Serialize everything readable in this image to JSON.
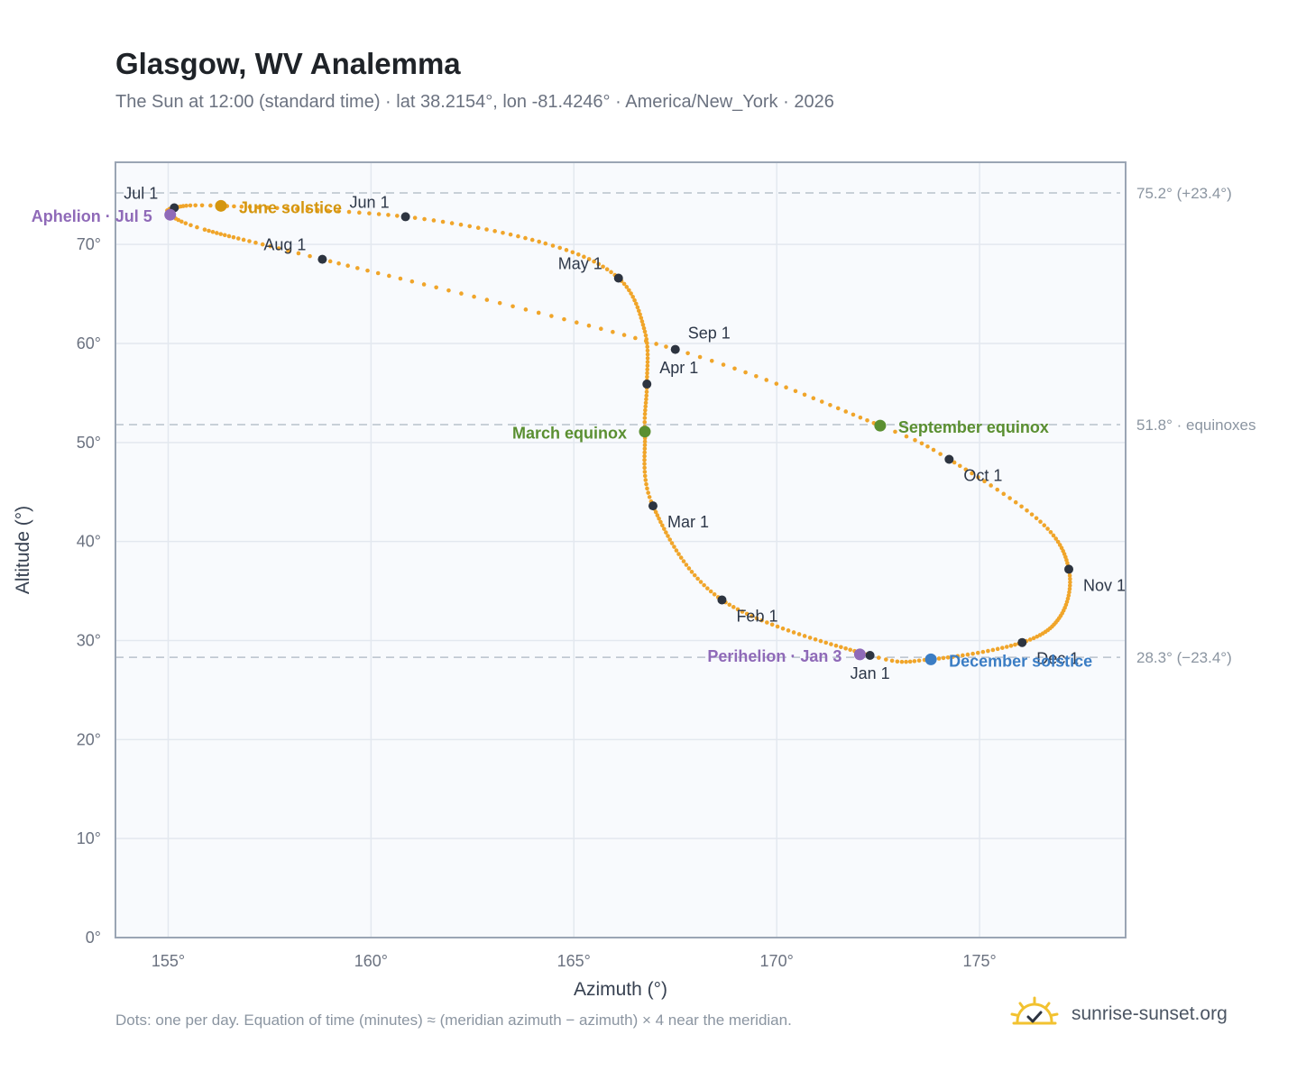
{
  "header": {
    "title": "Glasgow, WV Analemma",
    "subtitle": "The Sun at 12:00 (standard time) · lat 38.2154°, lon -81.4246° · America/New_York · 2026"
  },
  "footer": {
    "note": "Dots: one per day. Equation of time (minutes) ≈ (meridian azimuth − azimuth) × 4 near the meridian.",
    "brand": "sunrise-sunset.org"
  },
  "chart_data": {
    "type": "scatter",
    "xlabel": "Azimuth (°)",
    "ylabel": "Altitude (°)",
    "xlim": [
      153.7,
      178.6
    ],
    "ylim": [
      0,
      78.3
    ],
    "x_ticks": [
      155,
      160,
      165,
      170,
      175
    ],
    "x_tick_labels": [
      "155°",
      "160°",
      "165°",
      "170°",
      "175°"
    ],
    "y_ticks": [
      0,
      10,
      20,
      30,
      40,
      50,
      60,
      70
    ],
    "y_tick_labels": [
      "0°",
      "10°",
      "20°",
      "30°",
      "40°",
      "50°",
      "60°",
      "70°"
    ],
    "grid": true,
    "reference_lines": [
      {
        "y": 75.2,
        "label": "75.2° (+23.4°)"
      },
      {
        "y": 51.8,
        "label": "51.8° · equinoxes"
      },
      {
        "y": 28.3,
        "label": "28.3° (−23.4°)"
      }
    ],
    "analemma_anchors": [
      {
        "doy": 1,
        "az": 172.3,
        "alt": 28.5
      },
      {
        "doy": 32,
        "az": 168.65,
        "alt": 34.1
      },
      {
        "doy": 60,
        "az": 166.95,
        "alt": 43.6
      },
      {
        "doy": 79,
        "az": 166.75,
        "alt": 51.1
      },
      {
        "doy": 91,
        "az": 166.8,
        "alt": 55.9
      },
      {
        "doy": 105,
        "az": 166.75,
        "alt": 61.2
      },
      {
        "doy": 121,
        "az": 166.1,
        "alt": 66.6
      },
      {
        "doy": 135,
        "az": 164.3,
        "alt": 70.1
      },
      {
        "doy": 152,
        "az": 160.85,
        "alt": 72.8
      },
      {
        "doy": 172,
        "az": 156.3,
        "alt": 73.9
      },
      {
        "doy": 182,
        "az": 155.15,
        "alt": 73.7
      },
      {
        "doy": 186,
        "az": 155.05,
        "alt": 73.0
      },
      {
        "doy": 195,
        "az": 155.9,
        "alt": 71.5
      },
      {
        "doy": 213,
        "az": 158.8,
        "alt": 68.5
      },
      {
        "doy": 244,
        "az": 167.5,
        "alt": 59.4
      },
      {
        "doy": 266,
        "az": 172.55,
        "alt": 51.7
      },
      {
        "doy": 274,
        "az": 174.25,
        "alt": 48.3
      },
      {
        "doy": 290,
        "az": 176.5,
        "alt": 42.0
      },
      {
        "doy": 305,
        "az": 177.2,
        "alt": 37.2
      },
      {
        "doy": 320,
        "az": 177.0,
        "alt": 32.5
      },
      {
        "doy": 335,
        "az": 176.05,
        "alt": 29.8
      },
      {
        "doy": 355,
        "az": 173.8,
        "alt": 28.1
      },
      {
        "doy": 366,
        "az": 172.3,
        "alt": 28.5
      }
    ],
    "month_markers": [
      {
        "label": "Jan 1",
        "az": 172.3,
        "alt": 28.5,
        "pos": "below"
      },
      {
        "label": "Feb 1",
        "az": 168.65,
        "alt": 34.1,
        "pos": "below-right"
      },
      {
        "label": "Mar 1",
        "az": 166.95,
        "alt": 43.6,
        "pos": "below-right"
      },
      {
        "label": "Apr 1",
        "az": 166.8,
        "alt": 55.9,
        "pos": "above-right"
      },
      {
        "label": "May 1",
        "az": 166.1,
        "alt": 66.6,
        "pos": "above-left"
      },
      {
        "label": "Jun 1",
        "az": 160.85,
        "alt": 72.8,
        "pos": "above-left"
      },
      {
        "label": "Jul 1",
        "az": 155.15,
        "alt": 73.7,
        "pos": "above-left"
      },
      {
        "label": "Aug 1",
        "az": 158.8,
        "alt": 68.5,
        "pos": "above-left"
      },
      {
        "label": "Sep 1",
        "az": 167.5,
        "alt": 59.4,
        "pos": "above-right"
      },
      {
        "label": "Oct 1",
        "az": 174.25,
        "alt": 48.3,
        "pos": "below-right"
      },
      {
        "label": "Nov 1",
        "az": 177.2,
        "alt": 37.2,
        "pos": "below-right"
      },
      {
        "label": "Dec 1",
        "az": 176.05,
        "alt": 29.8,
        "pos": "below-right"
      }
    ],
    "events": [
      {
        "label": "June solstice",
        "az": 156.3,
        "alt": 73.9,
        "color": "#d4960f",
        "pos": "right"
      },
      {
        "label": "Aphelion · Jul 5",
        "az": 155.05,
        "alt": 73.0,
        "color": "#8f6ab8",
        "pos": "left"
      },
      {
        "label": "March equinox",
        "az": 166.75,
        "alt": 51.1,
        "color": "#5a8f31",
        "pos": "left"
      },
      {
        "label": "September equinox",
        "az": 172.55,
        "alt": 51.7,
        "color": "#5a8f31",
        "pos": "right"
      },
      {
        "label": "Perihelion · Jan 3",
        "az": 172.05,
        "alt": 28.6,
        "color": "#8f6ab8",
        "pos": "left"
      },
      {
        "label": "December solstice",
        "az": 173.8,
        "alt": 28.1,
        "color": "#3b7dc4",
        "pos": "right"
      }
    ],
    "colors": {
      "analemma": "#f0a52a",
      "month_dot": "#2d3440",
      "plot_bg": "#f8fafd",
      "grid": "#e3e8ef",
      "frame": "#9aa5b4",
      "ref_line": "#b8c1cc"
    }
  }
}
